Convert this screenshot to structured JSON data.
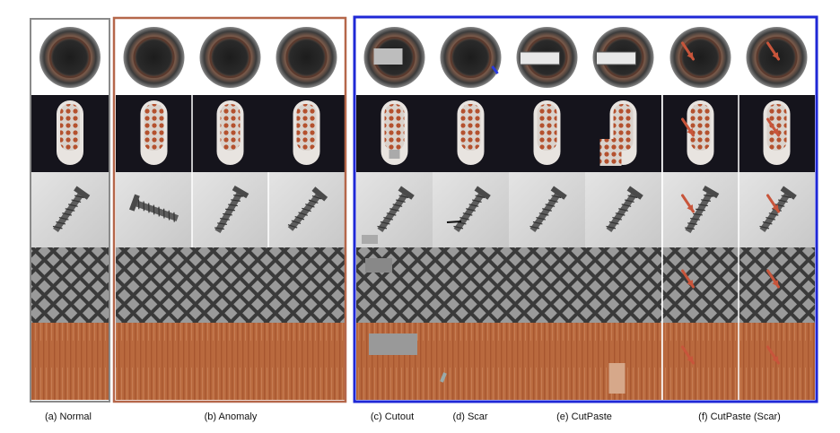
{
  "figure": {
    "captions": {
      "normal": "(a) Normal",
      "anomaly": "(b) Anomaly",
      "cutout": "(c) Cutout",
      "scar": "(d) Scar",
      "cutpaste": "(e) CutPaste",
      "cutpaste_scar": "(f) CutPaste (Scar)"
    },
    "rows": [
      "bottle",
      "toothbrush",
      "screw",
      "grid",
      "wood"
    ],
    "colors": {
      "normal_frame": "#8a8a8a",
      "anomaly_frame": "#b5674a",
      "augmentation_frame": "#1f28d6",
      "arrow": "#c8553b"
    }
  }
}
